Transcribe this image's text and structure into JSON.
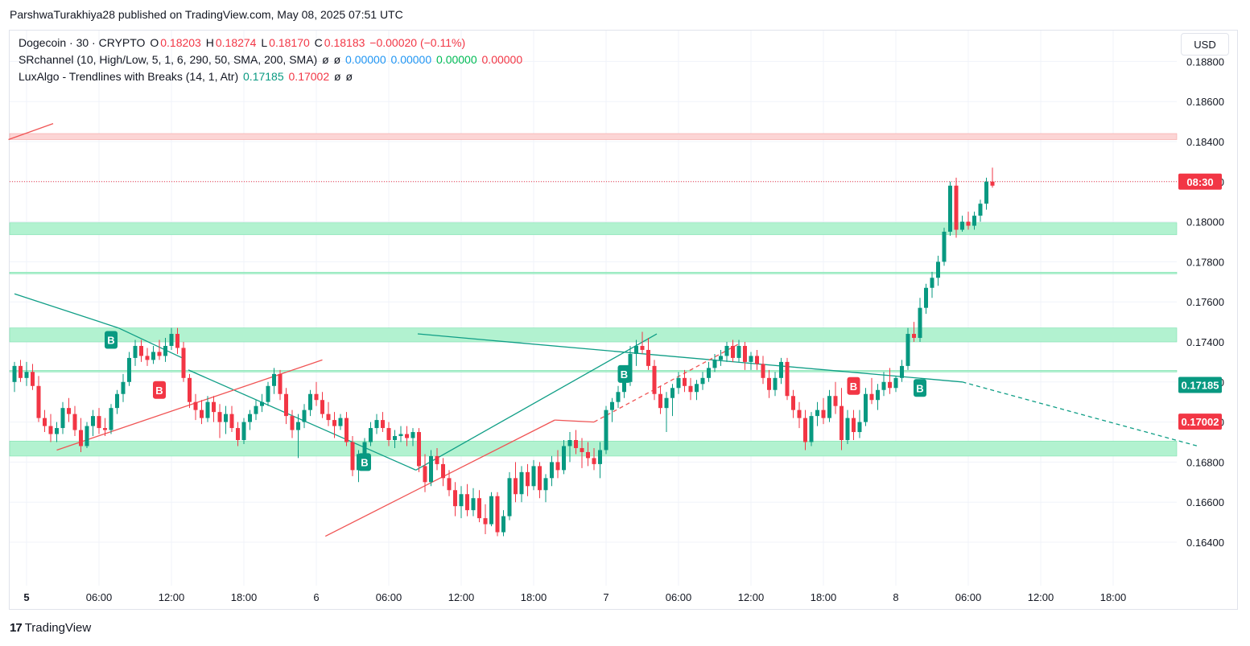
{
  "header": {
    "publisher": "ParshwaTurakhiya28 published on TradingView.com, May 08, 2025 07:51 UTC"
  },
  "legend": {
    "symbol": "Dogecoin · 30 · CRYPTO",
    "o_label": "O",
    "o": "0.18203",
    "h_label": "H",
    "h": "0.18274",
    "l_label": "L",
    "l": "0.18170",
    "c_label": "C",
    "c": "0.18183",
    "chg": "−0.00020 (−0.11%)",
    "sr_name": "SRchannel (10, High/Low, 5, 1, 6, 290, 50, SMA, 200, SMA)",
    "sr_v1": "0.00000",
    "sr_v2": "0.00000",
    "sr_v3": "0.00000",
    "sr_v4": "0.00000",
    "lux_name": "LuxAlgo - Trendlines with Breaks (14, 1, Atr)",
    "lux_v1": "0.17185",
    "lux_v2": "0.17002",
    "null_sym": "ø"
  },
  "currency_button": "USD",
  "footer": {
    "brand": "TradingView"
  },
  "colors": {
    "up": "#089981",
    "down": "#f23645",
    "zone": "#b2f2d0",
    "zone_red": "#fcd5d5",
    "teal_line": "#0f9e86",
    "red_line": "#f05454"
  },
  "chart_data": {
    "type": "candlestick",
    "title": "Dogecoin · 30 · CRYPTO",
    "ylim": [
      0.162,
      0.1888
    ],
    "y_ticks": [
      "0.18800",
      "0.18600",
      "0.18400",
      "0.18200",
      "0.18000",
      "0.17800",
      "0.17600",
      "0.17400",
      "0.17200",
      "0.17000",
      "0.16800",
      "0.16600",
      "0.16400"
    ],
    "x_ticks": [
      {
        "label": "5",
        "i": 2,
        "bold": true
      },
      {
        "label": "06:00",
        "i": 14
      },
      {
        "label": "12:00",
        "i": 26
      },
      {
        "label": "18:00",
        "i": 38
      },
      {
        "label": "6",
        "i": 50
      },
      {
        "label": "06:00",
        "i": 62
      },
      {
        "label": "12:00",
        "i": 74
      },
      {
        "label": "18:00",
        "i": 86
      },
      {
        "label": "7",
        "i": 98
      },
      {
        "label": "06:00",
        "i": 110
      },
      {
        "label": "12:00",
        "i": 122
      },
      {
        "label": "18:00",
        "i": 134
      },
      {
        "label": "8",
        "i": 146
      },
      {
        "label": "06:00",
        "i": 158
      },
      {
        "label": "12:00",
        "i": 170
      },
      {
        "label": "18:00",
        "i": 182
      }
    ],
    "price_labels": [
      {
        "text": "08:30",
        "value": 0.182,
        "color": "#f23645"
      },
      {
        "text": "0.17185",
        "value": 0.17185,
        "color": "#089981"
      },
      {
        "text": "0.17002",
        "value": 0.17002,
        "color": "#f23645"
      }
    ],
    "zones": [
      {
        "from": 0.1841,
        "to": 0.1844,
        "color": "#fcd5d5"
      },
      {
        "from": 0.17935,
        "to": 0.17995,
        "color": "#b2f2d0"
      },
      {
        "from": 0.1774,
        "to": 0.17748,
        "color": "#b2f2d0"
      },
      {
        "from": 0.174,
        "to": 0.1747,
        "color": "#b2f2d0"
      },
      {
        "from": 0.1725,
        "to": 0.17258,
        "color": "#b2f2d0"
      },
      {
        "from": 0.1683,
        "to": 0.16905,
        "color": "#b2f2d0"
      }
    ],
    "current_price": 0.18183,
    "candles": [
      [
        0.172,
        0.173,
        0.1715,
        0.1728
      ],
      [
        0.1728,
        0.1731,
        0.172,
        0.1722
      ],
      [
        0.1722,
        0.173,
        0.1718,
        0.1725
      ],
      [
        0.1725,
        0.1729,
        0.1716,
        0.1718
      ],
      [
        0.1718,
        0.1723,
        0.17,
        0.1702
      ],
      [
        0.1702,
        0.1706,
        0.1695,
        0.1698
      ],
      [
        0.1698,
        0.1704,
        0.169,
        0.1694
      ],
      [
        0.1694,
        0.17,
        0.169,
        0.1697
      ],
      [
        0.1697,
        0.171,
        0.1694,
        0.1707
      ],
      [
        0.1707,
        0.1712,
        0.17,
        0.1704
      ],
      [
        0.1704,
        0.1708,
        0.1693,
        0.1696
      ],
      [
        0.1696,
        0.1702,
        0.1685,
        0.1688
      ],
      [
        0.1688,
        0.17,
        0.1687,
        0.1698
      ],
      [
        0.1698,
        0.1706,
        0.1693,
        0.1703
      ],
      [
        0.1703,
        0.1707,
        0.1694,
        0.1697
      ],
      [
        0.1697,
        0.1702,
        0.1693,
        0.1696
      ],
      [
        0.1696,
        0.1709,
        0.1694,
        0.1707
      ],
      [
        0.1707,
        0.1716,
        0.1704,
        0.1714
      ],
      [
        0.1714,
        0.1724,
        0.171,
        0.172
      ],
      [
        0.172,
        0.1735,
        0.1718,
        0.1732
      ],
      [
        0.1732,
        0.1741,
        0.1728,
        0.1738
      ],
      [
        0.1738,
        0.1741,
        0.173,
        0.1733
      ],
      [
        0.1733,
        0.1737,
        0.1728,
        0.1731
      ],
      [
        0.1731,
        0.1738,
        0.1729,
        0.1735
      ],
      [
        0.1735,
        0.1741,
        0.1731,
        0.1733
      ],
      [
        0.1733,
        0.1742,
        0.173,
        0.1738
      ],
      [
        0.1738,
        0.1747,
        0.1736,
        0.1744
      ],
      [
        0.1744,
        0.1747,
        0.1734,
        0.1737
      ],
      [
        0.1737,
        0.174,
        0.172,
        0.1722
      ],
      [
        0.1722,
        0.1724,
        0.1707,
        0.171
      ],
      [
        0.171,
        0.1714,
        0.1701,
        0.1706
      ],
      [
        0.1706,
        0.1711,
        0.1699,
        0.1702
      ],
      [
        0.1702,
        0.1713,
        0.17,
        0.171
      ],
      [
        0.171,
        0.1713,
        0.17,
        0.1705
      ],
      [
        0.1705,
        0.1709,
        0.1692,
        0.17
      ],
      [
        0.17,
        0.1708,
        0.1694,
        0.1704
      ],
      [
        0.1704,
        0.1708,
        0.1695,
        0.1697
      ],
      [
        0.1697,
        0.17,
        0.1688,
        0.1691
      ],
      [
        0.1691,
        0.1702,
        0.1689,
        0.17
      ],
      [
        0.17,
        0.1706,
        0.1696,
        0.1704
      ],
      [
        0.1704,
        0.1711,
        0.1701,
        0.1708
      ],
      [
        0.1708,
        0.1714,
        0.1705,
        0.171
      ],
      [
        0.171,
        0.172,
        0.1708,
        0.1718
      ],
      [
        0.1718,
        0.1727,
        0.1714,
        0.1724
      ],
      [
        0.1724,
        0.1726,
        0.1711,
        0.1714
      ],
      [
        0.1714,
        0.1717,
        0.1699,
        0.1703
      ],
      [
        0.1703,
        0.1706,
        0.1692,
        0.1696
      ],
      [
        0.1696,
        0.1704,
        0.1682,
        0.17
      ],
      [
        0.17,
        0.1709,
        0.1697,
        0.1706
      ],
      [
        0.1706,
        0.1716,
        0.1703,
        0.1714
      ],
      [
        0.1714,
        0.172,
        0.1708,
        0.1711
      ],
      [
        0.1711,
        0.1715,
        0.1702,
        0.1704
      ],
      [
        0.1704,
        0.171,
        0.1698,
        0.1701
      ],
      [
        0.1701,
        0.1705,
        0.1692,
        0.1698
      ],
      [
        0.1698,
        0.1704,
        0.1696,
        0.1702
      ],
      [
        0.1702,
        0.1705,
        0.1688,
        0.169
      ],
      [
        0.169,
        0.1693,
        0.1673,
        0.1676
      ],
      [
        0.1676,
        0.1686,
        0.167,
        0.1684
      ],
      [
        0.1684,
        0.1692,
        0.1682,
        0.169
      ],
      [
        0.169,
        0.17,
        0.1688,
        0.1697
      ],
      [
        0.1697,
        0.1704,
        0.1694,
        0.1701
      ],
      [
        0.1701,
        0.1705,
        0.1695,
        0.1697
      ],
      [
        0.1697,
        0.17,
        0.1688,
        0.1691
      ],
      [
        0.1691,
        0.1696,
        0.1687,
        0.1693
      ],
      [
        0.1693,
        0.1698,
        0.169,
        0.1694
      ],
      [
        0.1694,
        0.1698,
        0.1688,
        0.1692
      ],
      [
        0.1692,
        0.1697,
        0.1688,
        0.1695
      ],
      [
        0.1695,
        0.1697,
        0.1675,
        0.1678
      ],
      [
        0.1678,
        0.1684,
        0.1665,
        0.167
      ],
      [
        0.167,
        0.1686,
        0.1668,
        0.1683
      ],
      [
        0.1683,
        0.1687,
        0.1676,
        0.1679
      ],
      [
        0.1679,
        0.1682,
        0.1668,
        0.1672
      ],
      [
        0.1672,
        0.1676,
        0.1663,
        0.1666
      ],
      [
        0.1666,
        0.167,
        0.1653,
        0.1658
      ],
      [
        0.1658,
        0.1668,
        0.1652,
        0.1664
      ],
      [
        0.1664,
        0.1669,
        0.1653,
        0.1656
      ],
      [
        0.1656,
        0.1667,
        0.1653,
        0.1662
      ],
      [
        0.1662,
        0.1666,
        0.165,
        0.1652
      ],
      [
        0.1652,
        0.1659,
        0.1644,
        0.1649
      ],
      [
        0.1649,
        0.1665,
        0.1648,
        0.1663
      ],
      [
        0.1663,
        0.1665,
        0.1643,
        0.1645
      ],
      [
        0.1645,
        0.1656,
        0.1643,
        0.1653
      ],
      [
        0.1653,
        0.1675,
        0.1651,
        0.1672
      ],
      [
        0.1672,
        0.168,
        0.166,
        0.1664
      ],
      [
        0.1664,
        0.1678,
        0.166,
        0.1675
      ],
      [
        0.1675,
        0.1679,
        0.1663,
        0.1668
      ],
      [
        0.1668,
        0.1681,
        0.1666,
        0.1678
      ],
      [
        0.1678,
        0.168,
        0.1662,
        0.1666
      ],
      [
        0.1666,
        0.1674,
        0.166,
        0.1672
      ],
      [
        0.1672,
        0.1683,
        0.1668,
        0.168
      ],
      [
        0.168,
        0.1686,
        0.1672,
        0.1676
      ],
      [
        0.1676,
        0.1691,
        0.1674,
        0.1688
      ],
      [
        0.1688,
        0.1695,
        0.168,
        0.1691
      ],
      [
        0.1691,
        0.1696,
        0.1684,
        0.1687
      ],
      [
        0.1687,
        0.1692,
        0.1677,
        0.1685
      ],
      [
        0.1685,
        0.169,
        0.1678,
        0.1682
      ],
      [
        0.1682,
        0.1687,
        0.1676,
        0.1679
      ],
      [
        0.1679,
        0.169,
        0.1672,
        0.1686
      ],
      [
        0.1686,
        0.1708,
        0.1684,
        0.1706
      ],
      [
        0.1706,
        0.1712,
        0.17,
        0.171
      ],
      [
        0.171,
        0.1718,
        0.1707,
        0.1715
      ],
      [
        0.1715,
        0.1724,
        0.1712,
        0.172
      ],
      [
        0.172,
        0.1738,
        0.1718,
        0.1734
      ],
      [
        0.1734,
        0.1741,
        0.1728,
        0.1738
      ],
      [
        0.1738,
        0.1745,
        0.1734,
        0.1736
      ],
      [
        0.1736,
        0.1742,
        0.1726,
        0.1728
      ],
      [
        0.1728,
        0.1731,
        0.1711,
        0.1714
      ],
      [
        0.1714,
        0.1718,
        0.1704,
        0.1707
      ],
      [
        0.1707,
        0.1715,
        0.1695,
        0.1712
      ],
      [
        0.1712,
        0.1719,
        0.1703,
        0.1717
      ],
      [
        0.1717,
        0.1725,
        0.1714,
        0.1722
      ],
      [
        0.1722,
        0.1726,
        0.1715,
        0.1718
      ],
      [
        0.1718,
        0.1722,
        0.1711,
        0.1715
      ],
      [
        0.1715,
        0.1721,
        0.1711,
        0.1719
      ],
      [
        0.1719,
        0.1725,
        0.1716,
        0.1722
      ],
      [
        0.1722,
        0.173,
        0.172,
        0.1727
      ],
      [
        0.1727,
        0.1734,
        0.1725,
        0.1731
      ],
      [
        0.1731,
        0.1736,
        0.1728,
        0.1733
      ],
      [
        0.1733,
        0.174,
        0.173,
        0.1738
      ],
      [
        0.1738,
        0.1741,
        0.173,
        0.1732
      ],
      [
        0.1732,
        0.1741,
        0.173,
        0.1738
      ],
      [
        0.1738,
        0.174,
        0.1726,
        0.173
      ],
      [
        0.173,
        0.1735,
        0.1726,
        0.1733
      ],
      [
        0.1733,
        0.1736,
        0.1726,
        0.1729
      ],
      [
        0.1729,
        0.1733,
        0.1719,
        0.1722
      ],
      [
        0.1722,
        0.1726,
        0.1712,
        0.1716
      ],
      [
        0.1716,
        0.1725,
        0.1713,
        0.1722
      ],
      [
        0.1722,
        0.1732,
        0.1719,
        0.173
      ],
      [
        0.173,
        0.1732,
        0.1711,
        0.1713
      ],
      [
        0.1713,
        0.1716,
        0.1702,
        0.1706
      ],
      [
        0.1706,
        0.171,
        0.1697,
        0.1702
      ],
      [
        0.1702,
        0.1706,
        0.1686,
        0.169
      ],
      [
        0.169,
        0.1705,
        0.1688,
        0.1703
      ],
      [
        0.1703,
        0.171,
        0.1698,
        0.1706
      ],
      [
        0.1706,
        0.1712,
        0.1699,
        0.1702
      ],
      [
        0.1702,
        0.1716,
        0.17,
        0.1713
      ],
      [
        0.1713,
        0.172,
        0.1704,
        0.1708
      ],
      [
        0.1708,
        0.1717,
        0.1686,
        0.1691
      ],
      [
        0.1691,
        0.1706,
        0.1689,
        0.1702
      ],
      [
        0.1702,
        0.1706,
        0.1691,
        0.1695
      ],
      [
        0.1695,
        0.1706,
        0.1692,
        0.17
      ],
      [
        0.17,
        0.1717,
        0.1698,
        0.1714
      ],
      [
        0.1714,
        0.1722,
        0.1709,
        0.1711
      ],
      [
        0.1711,
        0.1719,
        0.1706,
        0.1716
      ],
      [
        0.1716,
        0.1725,
        0.1713,
        0.172
      ],
      [
        0.172,
        0.1727,
        0.1714,
        0.1717
      ],
      [
        0.1717,
        0.1723,
        0.1715,
        0.1722
      ],
      [
        0.1722,
        0.1731,
        0.172,
        0.1728
      ],
      [
        0.1728,
        0.1747,
        0.1726,
        0.1744
      ],
      [
        0.1744,
        0.175,
        0.174,
        0.1742
      ],
      [
        0.1742,
        0.1762,
        0.174,
        0.1757
      ],
      [
        0.1757,
        0.1769,
        0.1754,
        0.1767
      ],
      [
        0.1767,
        0.1775,
        0.1762,
        0.1772
      ],
      [
        0.1772,
        0.1783,
        0.1768,
        0.178
      ],
      [
        0.178,
        0.1797,
        0.1778,
        0.1795
      ],
      [
        0.1795,
        0.182,
        0.1793,
        0.1818
      ],
      [
        0.1818,
        0.1822,
        0.1792,
        0.1796
      ],
      [
        0.1796,
        0.1803,
        0.1795,
        0.18
      ],
      [
        0.18,
        0.1805,
        0.1796,
        0.1798
      ],
      [
        0.1798,
        0.1805,
        0.1796,
        0.1803
      ],
      [
        0.1803,
        0.1811,
        0.18,
        0.1809
      ],
      [
        0.1809,
        0.1822,
        0.1806,
        0.182
      ],
      [
        0.182,
        0.1827,
        0.1817,
        0.1818
      ]
    ],
    "signals": [
      {
        "type": "B",
        "i": 16,
        "price": 0.1741,
        "color": "#089981"
      },
      {
        "type": "B",
        "i": 24,
        "price": 0.1716,
        "color": "#f23645"
      },
      {
        "type": "B",
        "i": 58,
        "price": 0.168,
        "color": "#089981"
      },
      {
        "type": "B",
        "i": 101,
        "price": 0.1724,
        "color": "#089981"
      },
      {
        "type": "B",
        "i": 139,
        "price": 0.1718,
        "color": "#f23645"
      },
      {
        "type": "B",
        "i": 150,
        "price": 0.1717,
        "color": "#089981"
      }
    ],
    "trendlines": [
      {
        "color": "#0f9e86",
        "dash": false,
        "p1": [
          0,
          0.1764
        ],
        "p2": [
          17.2,
          0.1747
        ]
      },
      {
        "color": "#0f9e86",
        "dash": false,
        "p1": [
          17.2,
          0.1747
        ],
        "p2": [
          27.8,
          0.1732
        ]
      },
      {
        "color": "#0f9e86",
        "dash": false,
        "p1": [
          28.8,
          0.1726
        ],
        "p2": [
          66.5,
          0.1676
        ]
      },
      {
        "color": "#0f9e86",
        "dash": false,
        "p1": [
          66.5,
          0.1676
        ],
        "p2": [
          106.4,
          0.1744
        ]
      },
      {
        "color": "#0f9e86",
        "dash": false,
        "p1": [
          66.8,
          0.1744
        ],
        "p2": [
          78,
          0.1741
        ]
      },
      {
        "color": "#0f9e86",
        "dash": false,
        "p1": [
          78,
          0.1741
        ],
        "p2": [
          157,
          0.172
        ]
      },
      {
        "color": "#0f9e86",
        "dash": true,
        "p1": [
          157,
          0.172
        ],
        "p2": [
          196,
          0.1688
        ]
      },
      {
        "color": "#f05454",
        "dash": false,
        "p1": [
          -1,
          0.1841
        ],
        "p2": [
          6.4,
          0.1849
        ]
      },
      {
        "color": "#f05454",
        "dash": false,
        "p1": [
          7,
          0.1686
        ],
        "p2": [
          51,
          0.1731
        ]
      },
      {
        "color": "#f05454",
        "dash": false,
        "p1": [
          51.5,
          0.1643
        ],
        "p2": [
          89.5,
          0.1701
        ]
      },
      {
        "color": "#f05454",
        "dash": false,
        "p1": [
          89.5,
          0.1701
        ],
        "p2": [
          96,
          0.17
        ]
      },
      {
        "color": "#f05454",
        "dash": true,
        "p1": [
          96,
          0.17
        ],
        "p2": [
          120,
          0.1739
        ]
      }
    ]
  }
}
